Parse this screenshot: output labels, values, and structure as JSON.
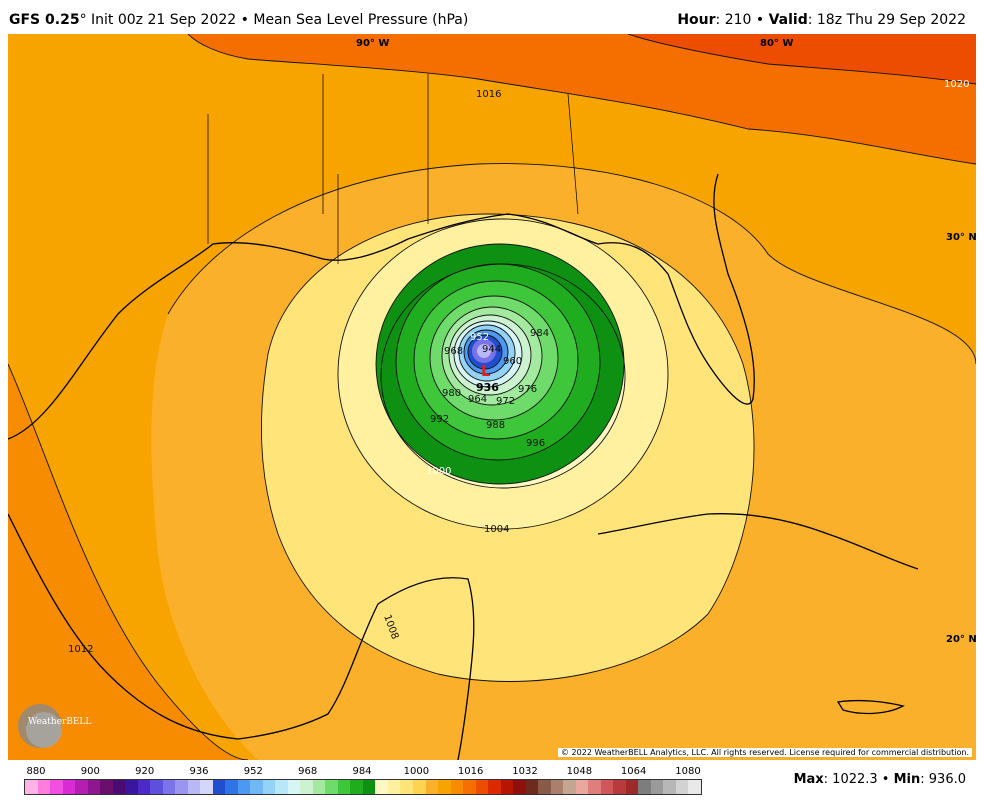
{
  "header": {
    "model": "GFS 0.25",
    "deg": "°",
    "init": " Init 00z 21 Sep 2022",
    "sep": " • ",
    "field": "Mean Sea Level Pressure (hPa)",
    "hour_label": "Hour",
    "hour_value": ": 210",
    "valid_label": "Valid",
    "valid_value": ": 18z Thu 29 Sep 2022"
  },
  "map": {
    "lon_labels": [
      "90° W",
      "80° W"
    ],
    "lat_labels": [
      "30° N",
      "20° N"
    ],
    "contour_labels": [
      "1020",
      "1016",
      "1012",
      "1008",
      "1004",
      "1000",
      "996",
      "992",
      "988",
      "984",
      "980",
      "976",
      "972",
      "968",
      "964",
      "960",
      "952",
      "944",
      "936"
    ],
    "low_symbol": "L",
    "low_value": "936",
    "copyright": "© 2022 WeatherBELL Analytics, LLC. All rights reserved. License required for commercial distribution.",
    "logo_text": "WeatherBELL"
  },
  "colorbar": {
    "labels": [
      "880",
      "900",
      "920",
      "936",
      "952",
      "968",
      "984",
      "1000",
      "1016",
      "1032",
      "1048",
      "1064",
      "1080"
    ],
    "colors": [
      "#ffb3e6",
      "#ff7ddc",
      "#f24ee0",
      "#d92bd4",
      "#b51fb0",
      "#8e168f",
      "#6a0f6c",
      "#4a0b73",
      "#3a159e",
      "#4c2ac8",
      "#5e4fdc",
      "#7a73ea",
      "#9a96f0",
      "#b8b8f6",
      "#d4d6fb",
      "#1f4ecf",
      "#2f74e6",
      "#4d98f0",
      "#6fb8f5",
      "#94d3f8",
      "#b7e7f9",
      "#d8f5f5",
      "#ccf2d0",
      "#a3e9a0",
      "#6fdb6a",
      "#3fc73c",
      "#1fad1f",
      "#0e9012",
      "#fff8c2",
      "#fff1a0",
      "#ffe47a",
      "#fed352",
      "#fbb02b",
      "#f7a400",
      "#f78c00",
      "#f46f00",
      "#ec4d00",
      "#db2a00",
      "#b71500",
      "#8f0e0e",
      "#6e2b1d",
      "#8a5a48",
      "#a8806c",
      "#c4a592",
      "#e8a8a0",
      "#e07d7d",
      "#cf5757",
      "#b83a3a",
      "#9e2a2a",
      "#7d7d7d",
      "#9a9a9a",
      "#b7b7b7",
      "#d2d2d2",
      "#e9e9e9"
    ]
  },
  "stats": {
    "max_label": "Max",
    "max_value": ": 1022.3",
    "sep": " • ",
    "min_label": "Min",
    "min_value": ": 936.0"
  }
}
